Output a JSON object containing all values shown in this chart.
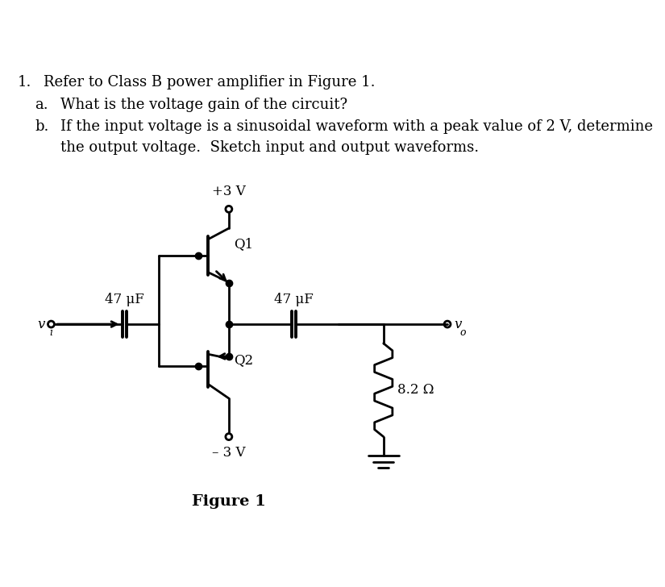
{
  "title_number": "1.",
  "title_text": "Refer to Class B power amplifier in Figure 1.",
  "qa_label": "a.",
  "qa_text": "What is the voltage gain of the circuit?",
  "qb_label": "b.",
  "qb_text": "If the input voltage is a sinusoidal waveform with a peak value of 2 V, determine",
  "qb_text2": "the output voltage.  Sketch input and output waveforms.",
  "fig_label": "Figure 1",
  "vplus": "+3 V",
  "vminus": "– 3 V",
  "q1_label": "Q1",
  "q2_label": "Q2",
  "cap1_label": "47 μF",
  "cap2_label": "47 μF",
  "res_label": "8.2 Ω",
  "vi_label": "v",
  "vi_sub": "i",
  "vo_label": "v",
  "vo_sub": "o",
  "line_color": "#000000",
  "bg_color": "#ffffff",
  "text_color": "#000000"
}
